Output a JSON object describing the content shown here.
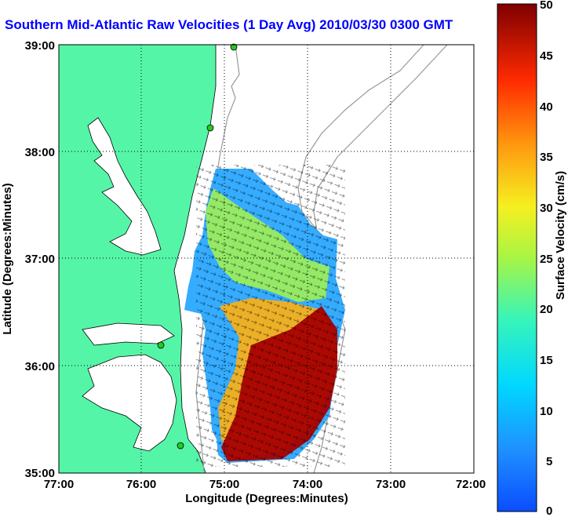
{
  "title": "Southern Mid-Atlantic Raw Velocities (1 Day Avg) 2010/03/30 0300 GMT",
  "xlabel": "Longitude (Degrees:Minutes)",
  "ylabel": "Latitude (Degrees:Minutes)",
  "colorbar_label": "Surface Velocity (cm/s)",
  "x_ticks": [
    "77:00",
    "76:00",
    "75:00",
    "74:00",
    "73:00",
    "72:00"
  ],
  "y_ticks": [
    "39:00",
    "38:00",
    "37:00",
    "36:00",
    "35:00"
  ],
  "colorbar_ticks": [
    "50",
    "45",
    "40",
    "35",
    "30",
    "25",
    "20",
    "15",
    "10",
    "5",
    "0"
  ],
  "chart_data": {
    "type": "heatmap",
    "title": "Southern Mid-Atlantic Raw Velocities (1 Day Avg) 2010/03/30 0300 GMT",
    "xlabel": "Longitude (Degrees:Minutes)",
    "ylabel": "Latitude (Degrees:Minutes)",
    "xlim": [
      -77,
      -72
    ],
    "ylim": [
      35,
      39
    ],
    "grid": true,
    "colorbar_range": [
      0,
      50
    ],
    "colorbar_units": "cm/s",
    "land_color": "#55f5a8",
    "station_color": "#22cc22"
  }
}
